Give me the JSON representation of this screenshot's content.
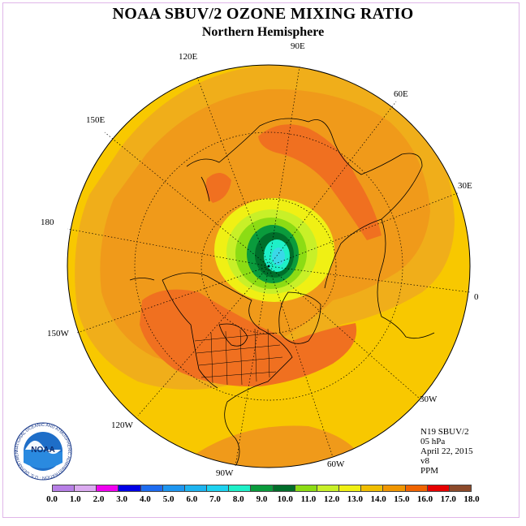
{
  "title": "NOAA SBUV/2 OZONE MIXING RATIO",
  "subtitle": "Northern Hemisphere",
  "longitude_labels": {
    "lon_90E": "90E",
    "lon_60E": "60E",
    "lon_30E": "30E",
    "lon_0": "0",
    "lon_30W": "30W",
    "lon_60W": "60W",
    "lon_90W": "90W",
    "lon_120W": "120W",
    "lon_150W": "150W",
    "lon_180": "180",
    "lon_150E": "150E",
    "lon_120E": "120E"
  },
  "info": {
    "instrument": "N19 SBUV/2",
    "level": "05 hPa",
    "date": "April 22, 2015",
    "version": "v8",
    "units": "PPM"
  },
  "logo": {
    "text": "NOAA",
    "ring_text": "NATIONAL OCEANIC AND ATMOSPHERIC ADMINISTRATION · U.S. DEPARTMENT OF COMMERCE"
  },
  "colorbar": {
    "colors": [
      "#b77fe6",
      "#dbaaf0",
      "#f000f0",
      "#0000e6",
      "#1e6cf0",
      "#1e96f0",
      "#1eb4f0",
      "#1ed2f0",
      "#1ef0c8",
      "#0a9b3c",
      "#006e2a",
      "#8cdc14",
      "#c8f028",
      "#f0f014",
      "#f0be00",
      "#f09600",
      "#f06400",
      "#e60000",
      "#8c4a2a"
    ],
    "tick_labels": [
      "0.0",
      "1.0",
      "2.0",
      "3.0",
      "4.0",
      "5.0",
      "6.0",
      "7.0",
      "8.0",
      "9.0",
      "10.0",
      "11.0",
      "12.0",
      "13.0",
      "14.0",
      "15.0",
      "16.0",
      "17.0",
      "18.0"
    ]
  }
}
